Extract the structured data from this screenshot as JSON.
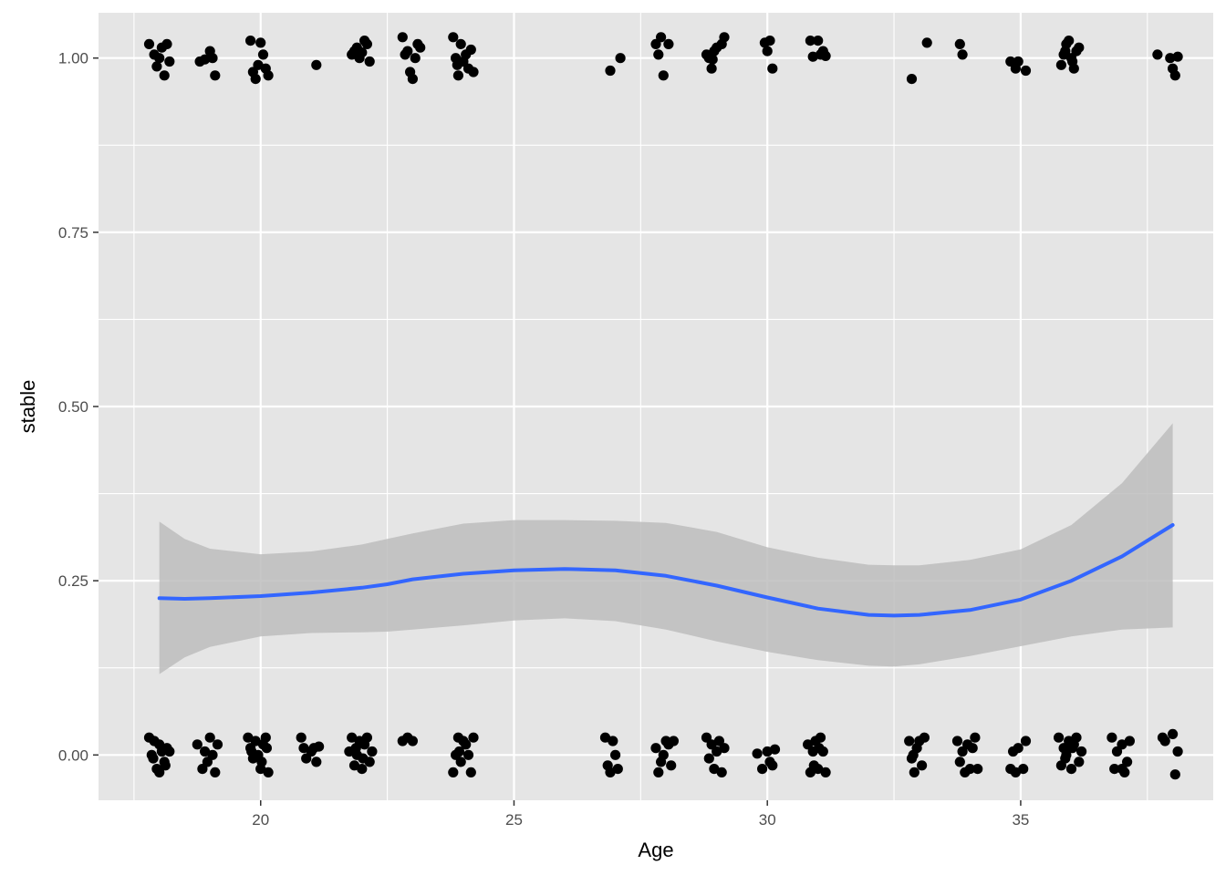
{
  "chart_data": {
    "type": "scatter",
    "title": "",
    "xlabel": "Age",
    "ylabel": "stable",
    "xlim": [
      16.8,
      38.8
    ],
    "ylim": [
      -0.065,
      1.065
    ],
    "x_ticks": [
      20,
      25,
      30,
      35
    ],
    "x_tick_labels": [
      "20",
      "25",
      "30",
      "35"
    ],
    "y_ticks": [
      0,
      0.25,
      0.5,
      0.75,
      1
    ],
    "y_tick_labels": [
      "0.00",
      "0.25",
      "0.50",
      "0.75",
      "1.00"
    ],
    "grid": true,
    "legend": "none",
    "colors": {
      "panel": "#e5e5e5",
      "grid": "#ffffff",
      "points": "#000000",
      "smooth_line": "#3366ff",
      "ribbon": "#bdbdbd"
    },
    "points": [
      [
        17.8,
        1.02
      ],
      [
        17.9,
        1.005
      ],
      [
        17.95,
        0.988
      ],
      [
        18.0,
        1.0
      ],
      [
        18.1,
        0.975
      ],
      [
        18.15,
        1.02
      ],
      [
        18.2,
        0.995
      ],
      [
        18.05,
        1.015
      ],
      [
        18.8,
        0.995
      ],
      [
        18.9,
        0.998
      ],
      [
        19.0,
        1.01
      ],
      [
        19.05,
        1.0
      ],
      [
        19.1,
        0.975
      ],
      [
        19.8,
        1.025
      ],
      [
        19.85,
        0.98
      ],
      [
        19.9,
        0.97
      ],
      [
        20.0,
        1.022
      ],
      [
        20.05,
        1.005
      ],
      [
        20.1,
        0.985
      ],
      [
        20.15,
        0.975
      ],
      [
        19.95,
        0.99
      ],
      [
        21.1,
        0.99
      ],
      [
        21.8,
        1.005
      ],
      [
        21.85,
        1.01
      ],
      [
        21.9,
        1.015
      ],
      [
        21.95,
        1.0
      ],
      [
        22.0,
        1.008
      ],
      [
        22.05,
        1.025
      ],
      [
        22.1,
        1.02
      ],
      [
        22.15,
        0.995
      ],
      [
        22.8,
        1.03
      ],
      [
        22.85,
        1.005
      ],
      [
        22.9,
        1.01
      ],
      [
        22.95,
        0.98
      ],
      [
        23.0,
        0.97
      ],
      [
        23.05,
        1.0
      ],
      [
        23.1,
        1.02
      ],
      [
        23.15,
        1.015
      ],
      [
        23.8,
        1.03
      ],
      [
        23.85,
        1.0
      ],
      [
        23.9,
        0.975
      ],
      [
        23.95,
        1.02
      ],
      [
        24.0,
        0.995
      ],
      [
        24.05,
        1.005
      ],
      [
        24.1,
        0.985
      ],
      [
        24.15,
        1.012
      ],
      [
        24.2,
        0.98
      ],
      [
        23.88,
        0.99
      ],
      [
        26.9,
        0.982
      ],
      [
        27.1,
        1.0
      ],
      [
        27.8,
        1.02
      ],
      [
        27.85,
        1.005
      ],
      [
        27.9,
        1.03
      ],
      [
        27.95,
        0.975
      ],
      [
        28.05,
        1.02
      ],
      [
        28.8,
        1.005
      ],
      [
        28.85,
        1.0
      ],
      [
        28.9,
        0.985
      ],
      [
        28.95,
        1.01
      ],
      [
        29.0,
        1.015
      ],
      [
        29.1,
        1.02
      ],
      [
        29.15,
        1.03
      ],
      [
        28.92,
        0.998
      ],
      [
        29.95,
        1.022
      ],
      [
        30.0,
        1.01
      ],
      [
        30.05,
        1.025
      ],
      [
        30.1,
        0.985
      ],
      [
        30.85,
        1.025
      ],
      [
        30.9,
        1.002
      ],
      [
        31.0,
        1.025
      ],
      [
        31.05,
        1.005
      ],
      [
        31.1,
        1.01
      ],
      [
        31.15,
        1.003
      ],
      [
        32.85,
        0.97
      ],
      [
        33.15,
        1.022
      ],
      [
        33.8,
        1.02
      ],
      [
        33.85,
        1.005
      ],
      [
        34.8,
        0.995
      ],
      [
        34.9,
        0.985
      ],
      [
        34.95,
        0.995
      ],
      [
        35.1,
        0.982
      ],
      [
        35.8,
        0.99
      ],
      [
        35.85,
        1.005
      ],
      [
        35.9,
        1.02
      ],
      [
        35.95,
        1.025
      ],
      [
        36.0,
        1.0
      ],
      [
        36.05,
        0.985
      ],
      [
        36.1,
        1.01
      ],
      [
        36.15,
        1.015
      ],
      [
        35.88,
        1.01
      ],
      [
        36.02,
        0.995
      ],
      [
        37.7,
        1.005
      ],
      [
        37.95,
        1.0
      ],
      [
        38.0,
        0.985
      ],
      [
        38.05,
        0.975
      ],
      [
        38.1,
        1.002
      ],
      [
        17.8,
        0.025
      ],
      [
        17.85,
        0.0
      ],
      [
        17.9,
        0.02
      ],
      [
        17.95,
        -0.02
      ],
      [
        18.0,
        0.015
      ],
      [
        18.05,
        0.005
      ],
      [
        18.1,
        -0.01
      ],
      [
        18.15,
        0.01
      ],
      [
        18.2,
        0.005
      ],
      [
        17.88,
        -0.005
      ],
      [
        18.0,
        -0.025
      ],
      [
        18.12,
        -0.015
      ],
      [
        18.75,
        0.015
      ],
      [
        18.85,
        -0.02
      ],
      [
        18.9,
        0.005
      ],
      [
        19.0,
        0.025
      ],
      [
        19.05,
        0.0
      ],
      [
        19.1,
        -0.025
      ],
      [
        19.15,
        0.015
      ],
      [
        18.95,
        -0.01
      ],
      [
        19.75,
        0.025
      ],
      [
        19.8,
        0.01
      ],
      [
        19.85,
        -0.005
      ],
      [
        19.9,
        0.02
      ],
      [
        19.95,
        0.0
      ],
      [
        20.0,
        -0.02
      ],
      [
        20.05,
        0.015
      ],
      [
        20.1,
        0.025
      ],
      [
        20.15,
        -0.025
      ],
      [
        19.82,
        0.005
      ],
      [
        20.02,
        -0.01
      ],
      [
        20.12,
        0.01
      ],
      [
        20.8,
        0.025
      ],
      [
        20.85,
        0.01
      ],
      [
        20.9,
        -0.005
      ],
      [
        21.0,
        0.005
      ],
      [
        21.05,
        0.01
      ],
      [
        21.1,
        -0.01
      ],
      [
        21.15,
        0.012
      ],
      [
        21.75,
        0.005
      ],
      [
        21.8,
        0.025
      ],
      [
        21.85,
        -0.015
      ],
      [
        21.9,
        0.0
      ],
      [
        21.95,
        0.02
      ],
      [
        22.0,
        -0.02
      ],
      [
        22.05,
        0.015
      ],
      [
        22.1,
        0.025
      ],
      [
        22.15,
        -0.01
      ],
      [
        22.2,
        0.005
      ],
      [
        21.88,
        0.01
      ],
      [
        22.02,
        -0.005
      ],
      [
        22.8,
        0.02
      ],
      [
        22.9,
        0.025
      ],
      [
        23.0,
        0.02
      ],
      [
        23.8,
        -0.025
      ],
      [
        23.85,
        0.0
      ],
      [
        23.9,
        0.025
      ],
      [
        23.95,
        -0.01
      ],
      [
        24.0,
        0.02
      ],
      [
        24.05,
        0.015
      ],
      [
        24.1,
        0.0
      ],
      [
        24.15,
        -0.025
      ],
      [
        24.2,
        0.025
      ],
      [
        23.92,
        0.005
      ],
      [
        26.8,
        0.025
      ],
      [
        26.85,
        -0.015
      ],
      [
        26.9,
        -0.025
      ],
      [
        26.95,
        0.02
      ],
      [
        27.0,
        0.0
      ],
      [
        27.05,
        -0.02
      ],
      [
        27.8,
        0.01
      ],
      [
        27.85,
        -0.025
      ],
      [
        27.9,
        -0.01
      ],
      [
        27.95,
        0.0
      ],
      [
        28.0,
        0.02
      ],
      [
        28.05,
        0.015
      ],
      [
        28.1,
        -0.015
      ],
      [
        28.15,
        0.02
      ],
      [
        28.8,
        0.025
      ],
      [
        28.85,
        -0.005
      ],
      [
        28.9,
        0.015
      ],
      [
        28.95,
        -0.02
      ],
      [
        29.0,
        0.005
      ],
      [
        29.05,
        0.02
      ],
      [
        29.1,
        -0.025
      ],
      [
        29.15,
        0.01
      ],
      [
        29.8,
        0.002
      ],
      [
        29.9,
        -0.02
      ],
      [
        30.0,
        0.005
      ],
      [
        30.05,
        -0.01
      ],
      [
        30.1,
        -0.015
      ],
      [
        30.15,
        0.008
      ],
      [
        30.8,
        0.015
      ],
      [
        30.85,
        -0.025
      ],
      [
        30.9,
        0.005
      ],
      [
        30.95,
        0.02
      ],
      [
        31.0,
        -0.02
      ],
      [
        31.05,
        0.025
      ],
      [
        31.1,
        0.005
      ],
      [
        31.15,
        -0.025
      ],
      [
        30.92,
        -0.015
      ],
      [
        31.02,
        0.01
      ],
      [
        32.8,
        0.02
      ],
      [
        32.85,
        -0.005
      ],
      [
        32.9,
        -0.025
      ],
      [
        32.95,
        0.01
      ],
      [
        33.0,
        0.02
      ],
      [
        33.05,
        -0.015
      ],
      [
        33.1,
        0.025
      ],
      [
        32.88,
        0.0
      ],
      [
        33.75,
        0.02
      ],
      [
        33.8,
        -0.01
      ],
      [
        33.85,
        0.005
      ],
      [
        33.9,
        -0.025
      ],
      [
        33.95,
        0.015
      ],
      [
        34.0,
        -0.02
      ],
      [
        34.05,
        0.01
      ],
      [
        34.1,
        0.025
      ],
      [
        34.15,
        -0.02
      ],
      [
        34.8,
        -0.02
      ],
      [
        34.85,
        0.005
      ],
      [
        34.9,
        -0.025
      ],
      [
        34.95,
        0.01
      ],
      [
        35.05,
        -0.02
      ],
      [
        35.1,
        0.02
      ],
      [
        35.75,
        0.025
      ],
      [
        35.8,
        -0.015
      ],
      [
        35.85,
        0.01
      ],
      [
        35.9,
        0.0
      ],
      [
        35.95,
        0.02
      ],
      [
        36.0,
        -0.02
      ],
      [
        36.05,
        0.015
      ],
      [
        36.1,
        0.025
      ],
      [
        36.15,
        -0.01
      ],
      [
        36.2,
        0.005
      ],
      [
        35.88,
        -0.005
      ],
      [
        36.02,
        0.01
      ],
      [
        36.8,
        0.025
      ],
      [
        36.85,
        -0.02
      ],
      [
        36.9,
        0.005
      ],
      [
        37.0,
        0.015
      ],
      [
        37.05,
        -0.025
      ],
      [
        37.1,
        -0.01
      ],
      [
        37.15,
        0.02
      ],
      [
        37.0,
        -0.02
      ],
      [
        37.8,
        0.025
      ],
      [
        37.85,
        0.02
      ],
      [
        38.0,
        0.03
      ],
      [
        38.05,
        -0.028
      ],
      [
        38.1,
        0.005
      ]
    ],
    "smooth": {
      "x": [
        18.0,
        18.5,
        19.0,
        20.0,
        21.0,
        22.0,
        22.5,
        23.0,
        24.0,
        25.0,
        26.0,
        27.0,
        28.0,
        29.0,
        30.0,
        31.0,
        32.0,
        32.5,
        33.0,
        34.0,
        35.0,
        36.0,
        37.0,
        38.0
      ],
      "y": [
        0.225,
        0.224,
        0.225,
        0.228,
        0.233,
        0.24,
        0.245,
        0.252,
        0.26,
        0.265,
        0.267,
        0.265,
        0.257,
        0.243,
        0.226,
        0.21,
        0.201,
        0.2,
        0.201,
        0.208,
        0.223,
        0.25,
        0.285,
        0.33
      ],
      "ymin": [
        0.116,
        0.14,
        0.155,
        0.17,
        0.175,
        0.176,
        0.177,
        0.18,
        0.186,
        0.193,
        0.196,
        0.192,
        0.18,
        0.163,
        0.148,
        0.136,
        0.128,
        0.127,
        0.13,
        0.142,
        0.156,
        0.17,
        0.18,
        0.183
      ],
      "ymax": [
        0.335,
        0.31,
        0.296,
        0.288,
        0.292,
        0.302,
        0.31,
        0.318,
        0.332,
        0.337,
        0.337,
        0.336,
        0.333,
        0.32,
        0.298,
        0.283,
        0.273,
        0.272,
        0.272,
        0.28,
        0.295,
        0.33,
        0.39,
        0.476
      ]
    }
  }
}
